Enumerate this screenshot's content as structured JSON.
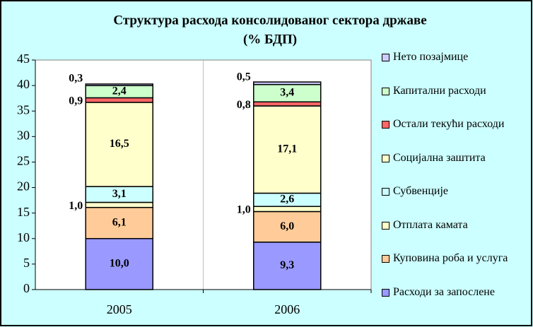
{
  "chart_data": {
    "type": "stacked_bar",
    "title": "Структура расхода консолидованог сектора државе",
    "subtitle": "(% БДП)",
    "categories": [
      "2005",
      "2006"
    ],
    "ylim": [
      0,
      45
    ],
    "yticks": [
      0,
      5,
      10,
      15,
      20,
      25,
      30,
      35,
      40,
      45
    ],
    "grid": false,
    "legend": "right",
    "series": [
      {
        "name": "Расходи за запослене",
        "color": "#9999ff",
        "values": [
          10.0,
          9.3
        ],
        "value_labels": [
          "10,0",
          "9,3"
        ]
      },
      {
        "name": "Куповина роба и услуга",
        "color": "#ffcc99",
        "values": [
          6.1,
          6.0
        ],
        "value_labels": [
          "6,1",
          "6,0"
        ]
      },
      {
        "name": "Отплата камата",
        "color": "#ffffcc",
        "values": [
          1.0,
          1.0
        ],
        "value_labels": [
          "1,0",
          "1,0"
        ]
      },
      {
        "name": "Субвенције",
        "color": "#ccffff",
        "values": [
          3.1,
          2.6
        ],
        "value_labels": [
          "3,1",
          "2,6"
        ]
      },
      {
        "name": "Социјална заштита",
        "color": "#ffffcc",
        "values": [
          16.5,
          17.1
        ],
        "value_labels": [
          "16,5",
          "17,1"
        ]
      },
      {
        "name": "Остали текући расходи",
        "color": "#ff6666",
        "values": [
          0.9,
          0.8
        ],
        "value_labels": [
          "0,9",
          "0,8"
        ]
      },
      {
        "name": "Капитални расходи",
        "color": "#ccffcc",
        "values": [
          2.4,
          3.4
        ],
        "value_labels": [
          "2,4",
          "3,4"
        ]
      },
      {
        "name": "Нето позајмице",
        "color": "#ccccff",
        "values": [
          0.3,
          0.5
        ],
        "value_labels": [
          "0,3",
          "0,5"
        ]
      }
    ]
  }
}
